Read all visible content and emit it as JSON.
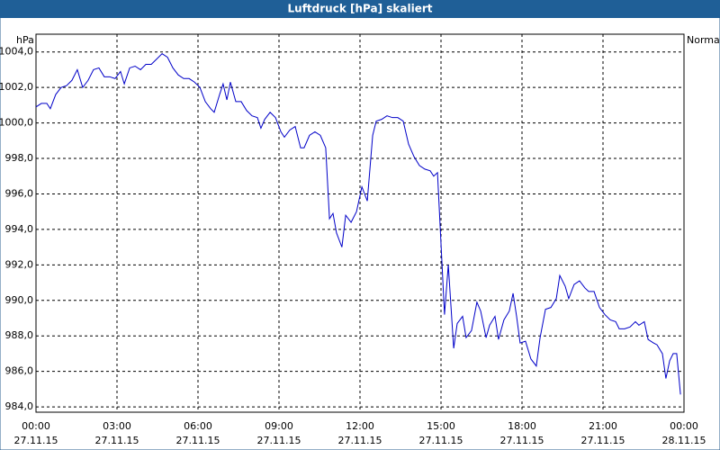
{
  "chart_data": {
    "type": "line",
    "title": "Luftdruck [hPa] skaliert",
    "y_label": "hPa",
    "xlim": [
      0,
      24
    ],
    "xticks": [
      {
        "value": 0,
        "label": "00:00",
        "date": "27.11.15"
      },
      {
        "value": 3,
        "label": "03:00",
        "date": "27.11.15"
      },
      {
        "value": 6,
        "label": "06:00",
        "date": "27.11.15"
      },
      {
        "value": 9,
        "label": "09:00",
        "date": "27.11.15"
      },
      {
        "value": 12,
        "label": "12:00",
        "date": "27.11.15"
      },
      {
        "value": 15,
        "label": "15:00",
        "date": "27.11.15"
      },
      {
        "value": 18,
        "label": "18:00",
        "date": "27.11.15"
      },
      {
        "value": 21,
        "label": "21:00",
        "date": "27.11.15"
      },
      {
        "value": 24,
        "label": "00:00",
        "date": "28.11.15"
      }
    ],
    "ylim": [
      983.7,
      1005.0
    ],
    "yticks": [
      {
        "value": 984,
        "label": "984,0"
      },
      {
        "value": 986,
        "label": "986,0"
      },
      {
        "value": 988,
        "label": "988,0"
      },
      {
        "value": 990,
        "label": "990,0"
      },
      {
        "value": 992,
        "label": "992,0"
      },
      {
        "value": 994,
        "label": "994,0"
      },
      {
        "value": 996,
        "label": "996,0"
      },
      {
        "value": 998,
        "label": "998,0"
      },
      {
        "value": 1000,
        "label": "1000,0"
      },
      {
        "value": 1002,
        "label": "1002,0"
      },
      {
        "value": 1004,
        "label": "1004,0"
      }
    ],
    "grid": true,
    "legend": "top-right",
    "x": [
      0,
      0.2,
      0.4,
      0.53,
      0.73,
      0.93,
      1.13,
      1.33,
      1.53,
      1.73,
      1.93,
      2.13,
      2.33,
      2.53,
      2.73,
      2.93,
      3.13,
      3.27,
      3.47,
      3.67,
      3.87,
      4.07,
      4.27,
      4.47,
      4.67,
      4.87,
      5.07,
      5.27,
      5.47,
      5.67,
      5.87,
      6.07,
      6.27,
      6.47,
      6.6,
      6.8,
      6.93,
      7.07,
      7.2,
      7.4,
      7.6,
      7.8,
      8,
      8.2,
      8.33,
      8.47,
      8.67,
      8.87,
      9.07,
      9.2,
      9.4,
      9.6,
      9.8,
      9.93,
      10.13,
      10.33,
      10.53,
      10.73,
      10.87,
      11,
      11.13,
      11.33,
      11.47,
      11.67,
      11.87,
      12.07,
      12.27,
      12.47,
      12.6,
      12.8,
      13,
      13.2,
      13.4,
      13.6,
      13.8,
      14,
      14.2,
      14.4,
      14.6,
      14.73,
      14.87,
      15,
      15.13,
      15.27,
      15.47,
      15.6,
      15.8,
      15.93,
      16.13,
      16.33,
      16.47,
      16.67,
      16.8,
      17,
      17.13,
      17.33,
      17.53,
      17.67,
      17.8,
      17.93,
      18.13,
      18.33,
      18.53,
      18.67,
      18.87,
      19.07,
      19.27,
      19.4,
      19.6,
      19.73,
      19.93,
      20.13,
      20.33,
      20.47,
      20.67,
      20.87,
      21.07,
      21.27,
      21.47,
      21.6,
      21.8,
      22,
      22.2,
      22.33,
      22.53,
      22.67,
      22.87,
      23,
      23.2,
      23.33,
      23.47,
      23.6,
      23.73,
      23.87
    ],
    "series": [
      {
        "name": "Normal",
        "color": "#0000c8",
        "values": [
          1000.9,
          1001.1,
          1001.1,
          1000.8,
          1001.6,
          1002.0,
          1002.1,
          1002.4,
          1003.0,
          1002.0,
          1002.4,
          1003.0,
          1003.1,
          1002.6,
          1002.6,
          1002.5,
          1002.9,
          1002.2,
          1003.1,
          1003.2,
          1003.0,
          1003.3,
          1003.3,
          1003.6,
          1003.9,
          1003.7,
          1003.1,
          1002.7,
          1002.5,
          1002.5,
          1002.3,
          1002.0,
          1001.2,
          1000.8,
          1000.6,
          1001.6,
          1002.2,
          1001.3,
          1002.3,
          1001.2,
          1001.2,
          1000.7,
          1000.4,
          1000.3,
          999.7,
          1000.2,
          1000.6,
          1000.3,
          999.5,
          999.2,
          999.6,
          999.8,
          998.6,
          998.6,
          999.3,
          999.5,
          999.3,
          998.6,
          994.6,
          994.9,
          993.8,
          993.0,
          994.8,
          994.4,
          995.0,
          996.4,
          995.6,
          999.3,
          1000.1,
          1000.2,
          1000.4,
          1000.3,
          1000.3,
          1000.1,
          998.8,
          998.1,
          997.6,
          997.4,
          997.3,
          997.0,
          997.2,
          993.2,
          989.2,
          992.0,
          987.3,
          988.7,
          989.1,
          987.9,
          988.3,
          989.9,
          989.4,
          987.9,
          988.6,
          989.1,
          987.8,
          988.9,
          989.4,
          990.4,
          989.1,
          987.6,
          987.7,
          986.7,
          986.3,
          987.9,
          989.5,
          989.6,
          990.1,
          991.4,
          990.8,
          990.1,
          990.9,
          991.1,
          990.7,
          990.5,
          990.5,
          989.6,
          989.2,
          988.9,
          988.8,
          988.4,
          988.4,
          988.5,
          988.8,
          988.6,
          988.8,
          987.8,
          987.6,
          987.5,
          987.0,
          985.6,
          986.6,
          987.0,
          987.0,
          984.7
        ]
      }
    ]
  }
}
